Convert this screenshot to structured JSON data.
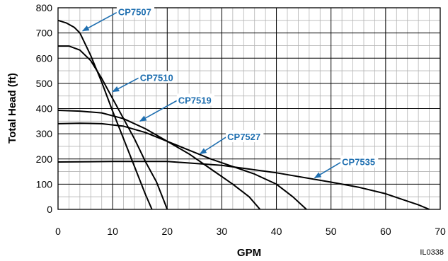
{
  "chart_data": {
    "type": "line",
    "title": "",
    "xlabel": "GPM",
    "ylabel": "Total Head (ft)",
    "xlim": [
      0,
      70
    ],
    "ylim": [
      0,
      800
    ],
    "x_ticks": [
      0,
      10,
      20,
      30,
      40,
      50,
      60,
      70
    ],
    "y_ticks": [
      0,
      100,
      200,
      300,
      400,
      500,
      600,
      700,
      800
    ],
    "grid": true,
    "minor_grid": true,
    "figure_code": "IL0338",
    "label_color": "#1f6fb0",
    "series": [
      {
        "name": "CP7507",
        "label_at": [
          11,
          770
        ],
        "arrow_to": [
          4.5,
          708
        ],
        "points": [
          [
            0,
            750
          ],
          [
            1.5,
            740
          ],
          [
            3,
            722
          ],
          [
            4,
            700
          ],
          [
            6,
            610
          ],
          [
            8,
            505
          ],
          [
            10,
            390
          ],
          [
            12,
            280
          ],
          [
            14,
            170
          ],
          [
            16,
            60
          ],
          [
            17.2,
            0
          ]
        ]
      },
      {
        "name": "CP7510",
        "label_at": [
          15,
          510
        ],
        "arrow_to": [
          10,
          467
        ],
        "points": [
          [
            0,
            648
          ],
          [
            2,
            648
          ],
          [
            4,
            632
          ],
          [
            6,
            590
          ],
          [
            8,
            520
          ],
          [
            10,
            440
          ],
          [
            12,
            360
          ],
          [
            14,
            280
          ],
          [
            16,
            190
          ],
          [
            18,
            110
          ],
          [
            19.2,
            45
          ],
          [
            20,
            0
          ]
        ]
      },
      {
        "name": "CP7519",
        "label_at": [
          22,
          420
        ],
        "arrow_to": [
          15,
          350
        ],
        "points": [
          [
            0,
            393
          ],
          [
            4,
            390
          ],
          [
            8,
            383
          ],
          [
            12,
            360
          ],
          [
            16,
            320
          ],
          [
            20,
            270
          ],
          [
            24,
            220
          ],
          [
            28,
            160
          ],
          [
            32,
            100
          ],
          [
            35,
            50
          ],
          [
            37,
            0
          ]
        ]
      },
      {
        "name": "CP7527",
        "label_at": [
          31,
          275
        ],
        "arrow_to": [
          26,
          220
        ],
        "points": [
          [
            0,
            340
          ],
          [
            4,
            342
          ],
          [
            8,
            340
          ],
          [
            12,
            330
          ],
          [
            16,
            305
          ],
          [
            20,
            270
          ],
          [
            24,
            235
          ],
          [
            28,
            200
          ],
          [
            32,
            170
          ],
          [
            36,
            140
          ],
          [
            40,
            100
          ],
          [
            43,
            50
          ],
          [
            45.5,
            0
          ]
        ]
      },
      {
        "name": "CP7535",
        "label_at": [
          52,
          175
        ],
        "arrow_to": [
          47,
          125
        ],
        "points": [
          [
            0,
            188
          ],
          [
            10,
            190
          ],
          [
            20,
            190
          ],
          [
            30,
            175
          ],
          [
            40,
            145
          ],
          [
            50,
            108
          ],
          [
            55,
            88
          ],
          [
            60,
            62
          ],
          [
            63,
            40
          ],
          [
            66,
            18
          ],
          [
            68,
            0
          ]
        ]
      }
    ]
  }
}
